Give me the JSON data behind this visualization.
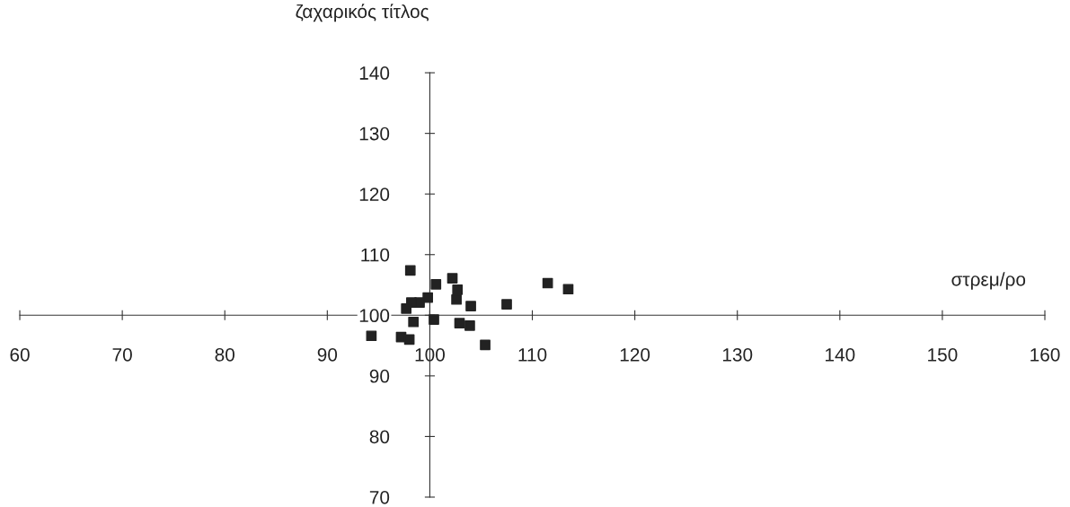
{
  "chart_data": {
    "type": "scatter",
    "xlabel": "στρεμ/ρο",
    "ylabel": "ζαχαρικός τίτλος",
    "x": [
      98.1,
      100.6,
      102.2,
      102.7,
      102.6,
      99.8,
      99.0,
      98.2,
      97.7,
      98.4,
      100.4,
      104.0,
      107.5,
      102.9,
      103.9,
      94.3,
      97.2,
      98.0,
      105.4,
      111.5,
      113.5
    ],
    "series": [
      {
        "color": "#222222",
        "values": [
          107.4,
          105.1,
          106.1,
          104.2,
          102.6,
          102.9,
          102.1,
          102.1,
          101.1,
          98.9,
          99.3,
          101.5,
          101.8,
          98.7,
          98.3,
          96.6,
          96.4,
          96.0,
          95.1,
          105.3,
          104.3
        ]
      }
    ],
    "xlim": [
      60,
      160
    ],
    "xticks": [
      60,
      70,
      80,
      90,
      100,
      110,
      120,
      130,
      140,
      150,
      160
    ],
    "ylim": [
      70,
      140
    ],
    "yticks": [
      70,
      80,
      90,
      100,
      110,
      120,
      130,
      140
    ],
    "marker": "square",
    "grid": false,
    "legend": false
  }
}
